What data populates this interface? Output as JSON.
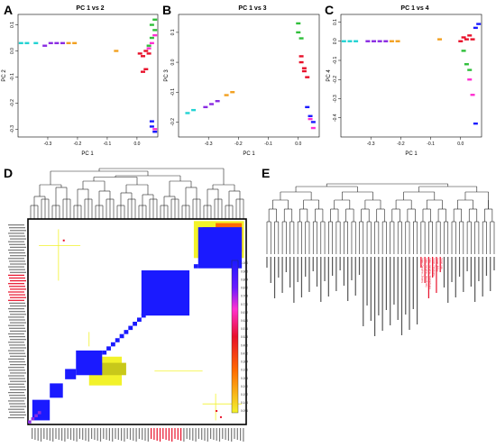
{
  "panels": {
    "A": {
      "letter": "A",
      "title": "PC 1 vs 2",
      "xlabel": "PC 1",
      "ylabel": "PC 2",
      "xticks": [
        "-0.3",
        "-0.2",
        "-0.1",
        "0.0"
      ],
      "yticks": [
        "0.1",
        "0.0",
        "-0.1",
        "-0.2",
        "-0.3"
      ]
    },
    "B": {
      "letter": "B",
      "title": "PC 1 vs 3",
      "xlabel": "PC 1",
      "ylabel": "PC 3",
      "xticks": [
        "-0.3",
        "-0.2",
        "-0.1",
        "0.0"
      ],
      "yticks": [
        "0.1",
        "0.0",
        "-0.1",
        "-0.2"
      ]
    },
    "C": {
      "letter": "C",
      "title": "PC 1 vs 4",
      "xlabel": "PC 1",
      "ylabel": "PC 4",
      "xticks": [
        "-0.3",
        "-0.2",
        "-0.1",
        "0.0"
      ],
      "yticks": [
        "0.1",
        "0.0",
        "-0.1",
        "-0.2",
        "-0.3",
        "-0.4"
      ]
    },
    "D": {
      "letter": "D",
      "color_key_ticks": [
        "1.000",
        "0.960",
        "0.864",
        "0.812",
        "0.768",
        "0.720",
        "0.672",
        "0.624",
        "0.576",
        "0.528",
        "0.480",
        "0.432",
        "0.384",
        "0.336",
        "0.288",
        "0.240",
        "0.192",
        "0.144",
        "0.096"
      ]
    },
    "E": {
      "letter": "E",
      "highlight_labels": [
        "Hebei_Cangzhou_Boyang",
        "Hebei_Cangzhou_Diaozhuang",
        "Hebei_Cangzhou_Wenjiazhuang",
        "Hunan_Fenghuang",
        "Hunan_Jishou",
        "Hunan_Liye"
      ]
    }
  },
  "colors": {
    "red": "#e8102a",
    "blue": "#1a1aff",
    "yellow": "#f2f22a",
    "orange": "#ff6a00",
    "magenta": "#ff2fd0",
    "cyan": "#22d3d3",
    "green": "#2fbf3a",
    "purple": "#8a2be2",
    "highlight": "#e8102a"
  },
  "chart_data": [
    {
      "type": "scatter",
      "title": "PC 1 vs 2",
      "xlabel": "PC 1",
      "ylabel": "PC 2",
      "xlim": [
        -0.4,
        0.07
      ],
      "ylim": [
        -0.33,
        0.14
      ],
      "series": [
        {
          "color": "#22d3d3",
          "points": [
            [
              -0.39,
              0.03
            ],
            [
              -0.37,
              0.03
            ],
            [
              -0.34,
              0.03
            ]
          ]
        },
        {
          "color": "#8a2be2",
          "points": [
            [
              -0.31,
              0.02
            ],
            [
              -0.29,
              0.03
            ],
            [
              -0.27,
              0.03
            ],
            [
              -0.25,
              0.03
            ]
          ]
        },
        {
          "color": "#f2a020",
          "points": [
            [
              -0.23,
              0.03
            ],
            [
              -0.21,
              0.03
            ],
            [
              -0.07,
              0.0
            ]
          ]
        },
        {
          "color": "#e8102a",
          "points": [
            [
              0.02,
              -0.08
            ],
            [
              0.03,
              -0.07
            ],
            [
              0.01,
              -0.01
            ],
            [
              0.02,
              -0.02
            ],
            [
              0.03,
              0.0
            ],
            [
              0.04,
              -0.01
            ]
          ]
        },
        {
          "color": "#2fbf3a",
          "points": [
            [
              0.04,
              0.02
            ],
            [
              0.05,
              0.05
            ],
            [
              0.06,
              0.08
            ],
            [
              0.05,
              0.1
            ],
            [
              0.06,
              0.12
            ]
          ]
        },
        {
          "color": "#1a1aff",
          "points": [
            [
              0.05,
              -0.27
            ],
            [
              0.05,
              -0.29
            ],
            [
              0.06,
              -0.31
            ]
          ]
        },
        {
          "color": "#ff2fd0",
          "points": [
            [
              0.04,
              0.01
            ],
            [
              0.05,
              0.03
            ],
            [
              0.06,
              0.06
            ],
            [
              0.06,
              -0.3
            ]
          ]
        }
      ]
    },
    {
      "type": "scatter",
      "title": "PC 1 vs 3",
      "xlabel": "PC 1",
      "ylabel": "PC 3",
      "xlim": [
        -0.4,
        0.07
      ],
      "ylim": [
        -0.25,
        0.16
      ],
      "series": [
        {
          "color": "#22d3d3",
          "points": [
            [
              -0.37,
              -0.17
            ],
            [
              -0.35,
              -0.16
            ]
          ]
        },
        {
          "color": "#8a2be2",
          "points": [
            [
              -0.31,
              -0.15
            ],
            [
              -0.29,
              -0.14
            ],
            [
              -0.27,
              -0.13
            ]
          ]
        },
        {
          "color": "#f2a020",
          "points": [
            [
              -0.24,
              -0.11
            ],
            [
              -0.22,
              -0.1
            ]
          ]
        },
        {
          "color": "#2fbf3a",
          "points": [
            [
              0.0,
              0.13
            ],
            [
              0.0,
              0.1
            ],
            [
              0.01,
              0.08
            ]
          ]
        },
        {
          "color": "#e8102a",
          "points": [
            [
              0.01,
              0.0
            ],
            [
              0.02,
              -0.02
            ],
            [
              0.03,
              -0.05
            ],
            [
              0.02,
              -0.03
            ],
            [
              0.01,
              0.02
            ]
          ]
        },
        {
          "color": "#1a1aff",
          "points": [
            [
              0.03,
              -0.15
            ],
            [
              0.04,
              -0.18
            ],
            [
              0.05,
              -0.2
            ]
          ]
        },
        {
          "color": "#ff2fd0",
          "points": [
            [
              0.04,
              -0.19
            ],
            [
              0.05,
              -0.22
            ]
          ]
        }
      ]
    },
    {
      "type": "scatter",
      "title": "PC 1 vs 4",
      "xlabel": "PC 1",
      "ylabel": "PC 4",
      "xlim": [
        -0.4,
        0.07
      ],
      "ylim": [
        -0.5,
        0.14
      ],
      "series": [
        {
          "color": "#22d3d3",
          "points": [
            [
              -0.39,
              0.0
            ],
            [
              -0.37,
              0.0
            ],
            [
              -0.35,
              0.0
            ]
          ]
        },
        {
          "color": "#8a2be2",
          "points": [
            [
              -0.31,
              0.0
            ],
            [
              -0.29,
              0.0
            ],
            [
              -0.27,
              0.0
            ],
            [
              -0.25,
              0.0
            ]
          ]
        },
        {
          "color": "#f2a020",
          "points": [
            [
              -0.23,
              0.0
            ],
            [
              -0.21,
              0.0
            ],
            [
              -0.07,
              0.01
            ]
          ]
        },
        {
          "color": "#e8102a",
          "points": [
            [
              0.0,
              0.0
            ],
            [
              0.01,
              0.02
            ],
            [
              0.02,
              0.01
            ],
            [
              0.03,
              0.03
            ],
            [
              0.04,
              0.01
            ]
          ]
        },
        {
          "color": "#2fbf3a",
          "points": [
            [
              0.01,
              -0.05
            ],
            [
              0.02,
              -0.12
            ],
            [
              0.03,
              -0.15
            ]
          ]
        },
        {
          "color": "#ff2fd0",
          "points": [
            [
              0.03,
              -0.2
            ],
            [
              0.04,
              -0.28
            ]
          ]
        },
        {
          "color": "#1a1aff",
          "points": [
            [
              0.05,
              0.07
            ],
            [
              0.06,
              0.09
            ],
            [
              0.05,
              -0.43
            ]
          ]
        }
      ]
    }
  ]
}
